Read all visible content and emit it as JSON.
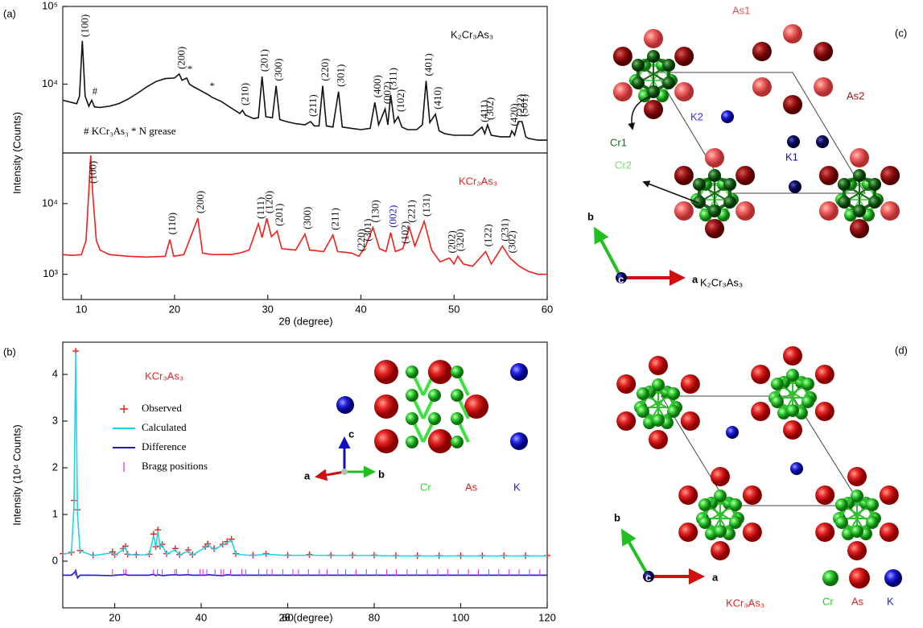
{
  "panel_labels": [
    "(a)",
    "(b)",
    "(c)",
    "(d)"
  ],
  "chart_data": [
    {
      "type": "line",
      "log_y": true,
      "title": "K₂Cr₃As₃",
      "title_color": "#111111",
      "note": "# KCr₃As₃  * N grease",
      "y_label": "Intensity (Counts)",
      "xlim": [
        8,
        60
      ],
      "ylim": [
        1300,
        100000
      ],
      "yticks": [
        {
          "value": 10000,
          "label": "10⁴"
        },
        {
          "value": 100000,
          "label": "10⁵"
        }
      ],
      "x": [
        8,
        9.5,
        9.8,
        10.1,
        10.4,
        10.8,
        11.1,
        11.4,
        12,
        13,
        14,
        15,
        16,
        17,
        18,
        19,
        20,
        20.5,
        20.8,
        21.3,
        21.6,
        22,
        23,
        23.7,
        24,
        25,
        26,
        27,
        27.3,
        27.6,
        28.5,
        29,
        29.4,
        29.8,
        30.5,
        30.9,
        31.3,
        32,
        33,
        34,
        34.6,
        35,
        35.5,
        35.9,
        36.3,
        37,
        37.6,
        38,
        39,
        40,
        41,
        41.5,
        41.9,
        42.6,
        42.9,
        43.2,
        43.6,
        44,
        44.4,
        45,
        46,
        46.6,
        47,
        47.4,
        48,
        48.4,
        49,
        50,
        51,
        52,
        53,
        53.3,
        53.6,
        54,
        55,
        56,
        56.2,
        56.5,
        56.9,
        57.3,
        57.7,
        58,
        59,
        60
      ],
      "series": [
        {
          "name": "K₂Cr₃As₃",
          "color": "#111111",
          "style": "line",
          "values": [
            6200,
            5600,
            7000,
            36000,
            7000,
            5200,
            6200,
            5100,
            5000,
            5200,
            5600,
            6400,
            7600,
            9200,
            10800,
            11800,
            12000,
            13500,
            11200,
            12000,
            10000,
            9300,
            8000,
            7200,
            6800,
            6000,
            5000,
            4200,
            4600,
            4000,
            3600,
            3700,
            12500,
            3800,
            3700,
            9500,
            3500,
            3300,
            3100,
            3000,
            3300,
            2900,
            2900,
            9500,
            2900,
            2800,
            8000,
            2800,
            2700,
            2600,
            2700,
            5800,
            3000,
            4800,
            3000,
            7300,
            3200,
            3800,
            2800,
            2600,
            2600,
            3000,
            11000,
            3200,
            4100,
            2500,
            2300,
            2200,
            2200,
            2200,
            2800,
            2300,
            3000,
            2200,
            2100,
            2100,
            2500,
            2200,
            3300,
            3300,
            2100,
            2000,
            1900,
            1900
          ]
        }
      ],
      "annotations": [
        {
          "text": "(100)",
          "x": 10.1
        },
        {
          "text": "#",
          "x": 11.1
        },
        {
          "text": "(200)",
          "x": 20.5
        },
        {
          "text": "*",
          "x": 21.3
        },
        {
          "text": "*",
          "x": 23.7
        },
        {
          "text": "(210)",
          "x": 27.3
        },
        {
          "text": "(201)",
          "x": 29.4
        },
        {
          "text": "(300)",
          "x": 30.9
        },
        {
          "text": "(211)",
          "x": 34.6
        },
        {
          "text": "(220)",
          "x": 35.9
        },
        {
          "text": "(301)",
          "x": 37.6
        },
        {
          "text": "(400)",
          "x": 41.5
        },
        {
          "text": "(002)",
          "x": 42.6
        },
        {
          "text": "(311)",
          "x": 43.2
        },
        {
          "text": "(102)",
          "x": 44
        },
        {
          "text": "(401)",
          "x": 47
        },
        {
          "text": "(410)",
          "x": 48
        },
        {
          "text": "(411)",
          "x": 53
        },
        {
          "text": "(302)",
          "x": 53.6
        },
        {
          "text": "(420)",
          "x": 56.2
        },
        {
          "text": "(222)",
          "x": 56.9
        },
        {
          "text": "(501)",
          "x": 57.3
        }
      ]
    },
    {
      "type": "line",
      "log_y": true,
      "title": "KCr₃As₃",
      "title_color": "#e8221f",
      "x_label": "2θ (degree)",
      "xlim": [
        8,
        60
      ],
      "ylim": [
        440,
        52000
      ],
      "xticks": [
        10,
        20,
        30,
        40,
        50,
        60
      ],
      "yticks": [
        {
          "value": 1000,
          "label": "10³"
        },
        {
          "value": 10000,
          "label": "10⁴"
        }
      ],
      "x": [
        8,
        9,
        10,
        10.5,
        10.8,
        11,
        11.2,
        11.6,
        12,
        13,
        15,
        17,
        19,
        19.5,
        19.9,
        21,
        22.5,
        23,
        24,
        26,
        27,
        28,
        29,
        29.4,
        29.9,
        30.4,
        31,
        31.5,
        33,
        34,
        34.5,
        36,
        37,
        37.5,
        39,
        39.8,
        40.5,
        41.3,
        42,
        42.7,
        43.2,
        43.7,
        44.5,
        45.2,
        45.8,
        46.8,
        47.6,
        48.5,
        49.5,
        50,
        50.4,
        51,
        52,
        53.4,
        54,
        55.2,
        56,
        57,
        58,
        59,
        60
      ],
      "series": [
        {
          "name": "KCr₃As₃",
          "color": "#f0201a",
          "style": "line",
          "values": [
            1900,
            1850,
            1900,
            3000,
            15000,
            48000,
            15000,
            3000,
            2200,
            1900,
            1800,
            1750,
            1800,
            3100,
            1800,
            1900,
            6200,
            2000,
            1900,
            1900,
            2000,
            2200,
            5200,
            3300,
            6200,
            3400,
            4100,
            2300,
            2200,
            3700,
            2200,
            2100,
            3600,
            2100,
            2000,
            1800,
            2500,
            4600,
            2300,
            2100,
            3900,
            2100,
            2300,
            4600,
            2500,
            5600,
            2200,
            1500,
            1700,
            1400,
            1800,
            1400,
            1300,
            2100,
            1400,
            2500,
            1700,
            1300,
            1100,
            1000,
            1000
          ]
        }
      ],
      "annotations": [
        {
          "text": "(100)",
          "x": 11
        },
        {
          "text": "(110)",
          "x": 19.5
        },
        {
          "text": "(200)",
          "x": 22.5
        },
        {
          "text": "(111)",
          "x": 29
        },
        {
          "text": "(120)",
          "x": 29.9
        },
        {
          "text": "(201)",
          "x": 31
        },
        {
          "text": "(300)",
          "x": 34
        },
        {
          "text": "(211)",
          "x": 37
        },
        {
          "text": "(220)",
          "x": 39.8
        },
        {
          "text": "(301)",
          "x": 40.5
        },
        {
          "text": "(130)",
          "x": 41.3
        },
        {
          "text": "(002)",
          "x": 43.2,
          "color": "#1a1acc"
        },
        {
          "text": "(102)",
          "x": 44.5
        },
        {
          "text": "(221)",
          "x": 45.2
        },
        {
          "text": "(131)",
          "x": 46.8
        },
        {
          "text": "(202)",
          "x": 49.5
        },
        {
          "text": "(320)",
          "x": 50.4
        },
        {
          "text": "(122)",
          "x": 53.4
        },
        {
          "text": "(231)",
          "x": 55.2
        },
        {
          "text": "(302)",
          "x": 56
        }
      ]
    },
    {
      "type": "line",
      "log_y": false,
      "title": "KCr₃As₃",
      "title_color": "#e8221f",
      "x_label": "2θ (degree)",
      "y_label": "Intensity (10⁴ Counts)",
      "xlim": [
        8,
        120
      ],
      "ylim": [
        -1,
        4.69
      ],
      "xticks": [
        20,
        40,
        60,
        80,
        100,
        120
      ],
      "yticks": [
        0,
        1,
        2,
        3,
        4
      ],
      "x": [
        8,
        10,
        10.6,
        11,
        11.4,
        12,
        15,
        19.5,
        20,
        22,
        22.5,
        23,
        25,
        28,
        29,
        29.5,
        30,
        30.5,
        31,
        32,
        34,
        35,
        37,
        38,
        41,
        41.5,
        43,
        45,
        46,
        47,
        48,
        52,
        55,
        60,
        65,
        70,
        75,
        80,
        85,
        90,
        95,
        100,
        105,
        110,
        115,
        120
      ],
      "series": [
        {
          "name": "Observed",
          "color": "#e8221f",
          "style": "cross",
          "values": [
            0.16,
            0.19,
            1.3,
            4.5,
            1.1,
            0.23,
            0.13,
            0.2,
            0.14,
            0.27,
            0.32,
            0.15,
            0.14,
            0.15,
            0.58,
            0.31,
            0.67,
            0.32,
            0.36,
            0.16,
            0.27,
            0.14,
            0.24,
            0.14,
            0.31,
            0.37,
            0.27,
            0.36,
            0.42,
            0.47,
            0.16,
            0.13,
            0.16,
            0.13,
            0.14,
            0.13,
            0.13,
            0.13,
            0.12,
            0.12,
            0.12,
            0.12,
            0.12,
            0.12,
            0.12,
            0.12
          ]
        },
        {
          "name": "Calculated",
          "color": "#22d3e6",
          "style": "line",
          "values": [
            0.15,
            0.18,
            1.2,
            4.45,
            1.0,
            0.22,
            0.12,
            0.18,
            0.13,
            0.25,
            0.3,
            0.14,
            0.13,
            0.14,
            0.55,
            0.3,
            0.65,
            0.3,
            0.35,
            0.15,
            0.25,
            0.13,
            0.22,
            0.13,
            0.3,
            0.35,
            0.25,
            0.35,
            0.4,
            0.45,
            0.15,
            0.12,
            0.15,
            0.12,
            0.13,
            0.12,
            0.12,
            0.12,
            0.11,
            0.11,
            0.11,
            0.11,
            0.11,
            0.11,
            0.11,
            0.11
          ]
        },
        {
          "name": "Difference",
          "color": "#1a1acc",
          "style": "line",
          "values": [
            -0.3,
            -0.3,
            -0.25,
            -0.2,
            -0.36,
            -0.3,
            -0.3,
            -0.31,
            -0.3,
            -0.29,
            -0.28,
            -0.3,
            -0.3,
            -0.3,
            -0.28,
            -0.31,
            -0.29,
            -0.3,
            -0.31,
            -0.3,
            -0.29,
            -0.3,
            -0.29,
            -0.3,
            -0.3,
            -0.29,
            -0.3,
            -0.31,
            -0.29,
            -0.3,
            -0.3,
            -0.3,
            -0.3,
            -0.3,
            -0.3,
            -0.3,
            -0.3,
            -0.3,
            -0.3,
            -0.3,
            -0.3,
            -0.3,
            -0.3,
            -0.3,
            -0.3,
            -0.3
          ]
        },
        {
          "name": "Bragg positions",
          "color": "#e020e0",
          "style": "tick",
          "x": [
            10.9,
            19.5,
            22.1,
            22.6,
            29.0,
            29.9,
            31.0,
            33.9,
            34.3,
            37.0,
            39.7,
            40.4,
            41.3,
            43.2,
            44.6,
            45.2,
            46.8,
            49.4,
            50.3,
            53.3,
            55.2,
            56.4,
            58.9,
            61.2,
            62.5,
            64.8,
            67.3,
            69.1,
            71.6,
            73.4,
            75.8,
            78.2,
            80.5,
            82.9,
            85.1,
            87.6,
            89.8,
            92.3,
            94.7,
            97.0,
            99.4,
            101.8,
            104.1,
            106.5,
            108.8,
            111.2,
            113.5,
            115.9,
            118.3
          ]
        }
      ],
      "legend_position": "upper left"
    }
  ],
  "inset_b": {
    "axis_labels": [
      "a",
      "b",
      "c"
    ],
    "atom_labels": [
      "Cr",
      "As",
      "K"
    ]
  },
  "structure_c": {
    "title": "K₂Cr₃As₃",
    "labels": [
      "As1",
      "As2",
      "Cr1",
      "Cr2",
      "K1",
      "K2"
    ],
    "axis_labels": [
      "a",
      "b",
      "c"
    ]
  },
  "structure_d": {
    "title": "KCr₃As₃",
    "atom_labels": [
      "Cr",
      "As",
      "K"
    ],
    "axis_labels": [
      "a",
      "b",
      "c"
    ]
  }
}
